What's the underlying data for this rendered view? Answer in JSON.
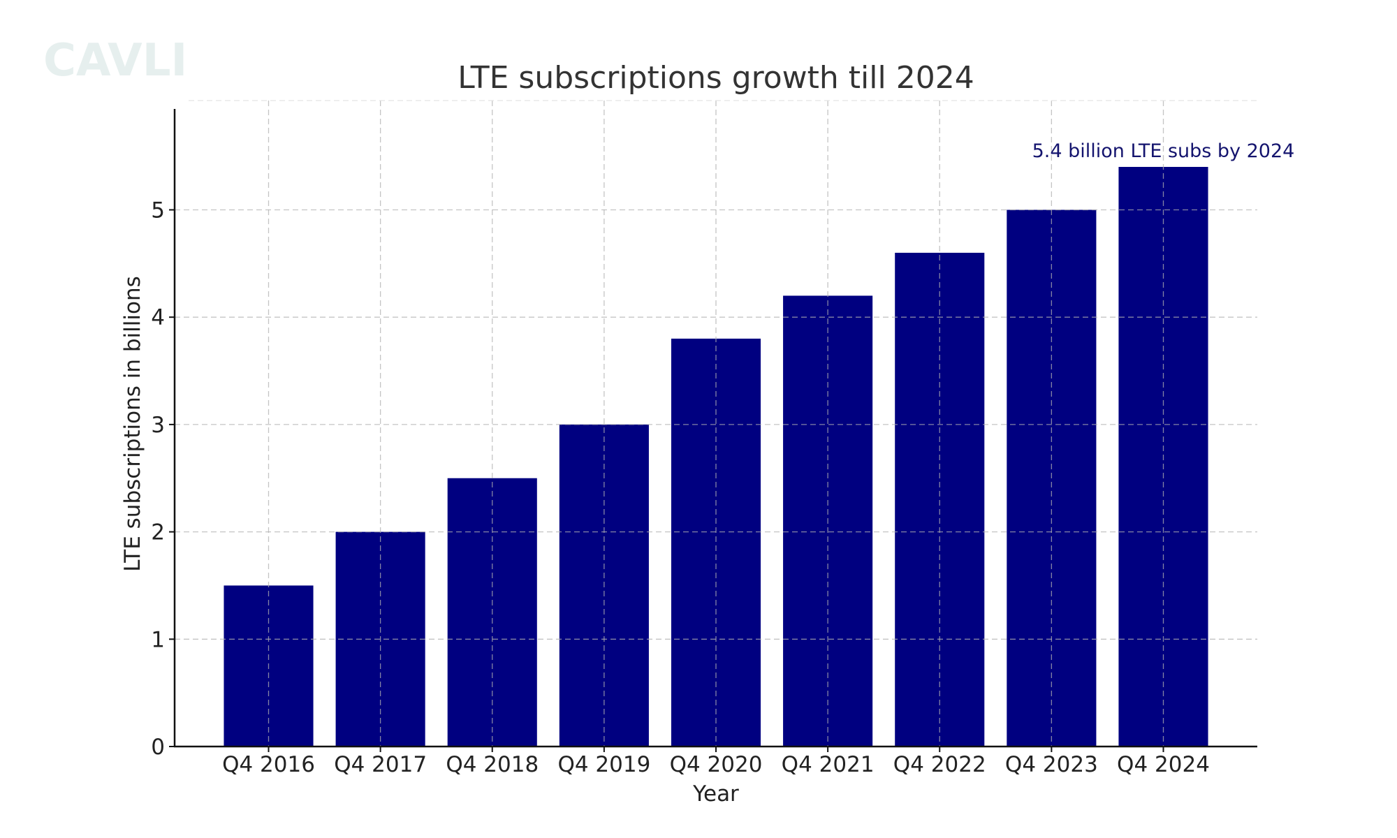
{
  "watermark": "CAVLI",
  "chart_data": {
    "type": "bar",
    "title": "LTE subscriptions growth till 2024",
    "xlabel": "Year",
    "ylabel": "LTE subscriptions in billions",
    "categories": [
      "Q4 2016",
      "Q4 2017",
      "Q4 2018",
      "Q4 2019",
      "Q4 2020",
      "Q4 2021",
      "Q4 2022",
      "Q4 2023",
      "Q4 2024"
    ],
    "values": [
      1.5,
      2.0,
      2.5,
      3.0,
      3.8,
      4.2,
      4.6,
      5.0,
      5.4
    ],
    "ylim": [
      0,
      5.94
    ],
    "yticks": [
      0,
      1,
      2,
      3,
      4,
      5
    ],
    "grid": true,
    "annotation": {
      "text": "5.4 billion LTE subs by 2024",
      "category": "Q4 2024",
      "value": 5.4
    },
    "colors": {
      "bar": "#000080",
      "annotation": "#14146e",
      "grid": "#b0b0b0"
    }
  }
}
